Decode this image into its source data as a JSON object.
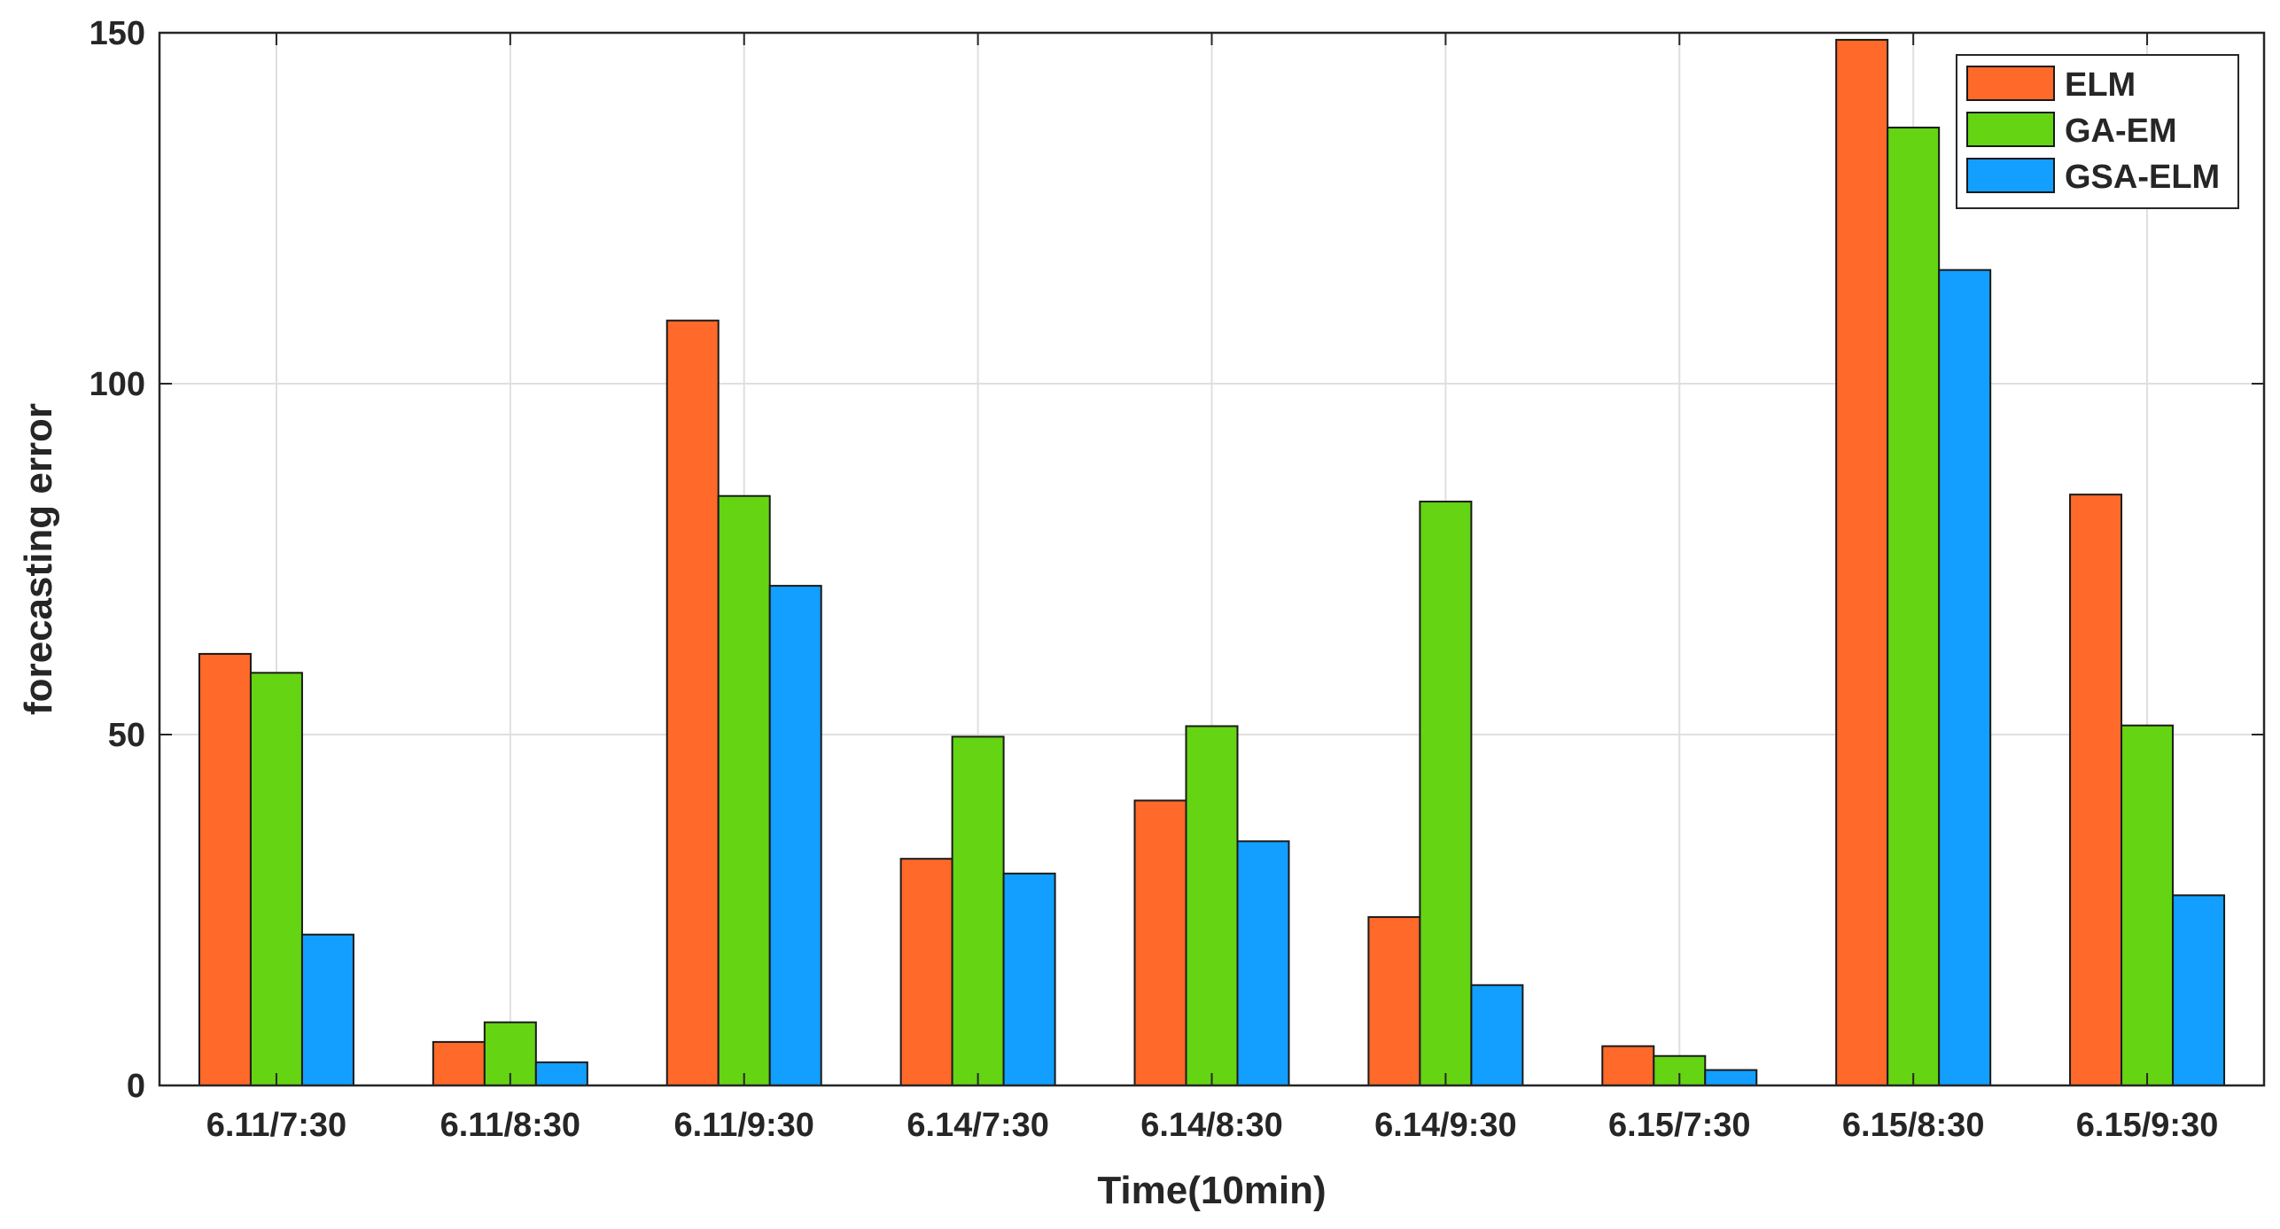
{
  "chart_data": {
    "type": "bar",
    "title": "",
    "xlabel": "Time(10min)",
    "ylabel": "forecasting error",
    "ylim": [
      0,
      150
    ],
    "yticks": [
      "0",
      "50",
      "100",
      "150"
    ],
    "categories": [
      "6.11/7:30",
      "6.11/8:30",
      "6.11/9:30",
      "6.14/7:30",
      "6.14/8:30",
      "6.14/9:30",
      "6.15/7:30",
      "6.15/8:30",
      "6.15/9:30"
    ],
    "series": [
      {
        "name": "ELM",
        "color": "#ff6929",
        "values": [
          61.5,
          6.2,
          109,
          32.3,
          40.6,
          24,
          5.6,
          149,
          84.2
        ]
      },
      {
        "name": "GA-EM",
        "color": "#64d413",
        "values": [
          58.8,
          9,
          84,
          49.7,
          51.2,
          83.2,
          4.2,
          136.5,
          51.3
        ]
      },
      {
        "name": "GSA-ELM",
        "color": "#129fff",
        "values": [
          21.5,
          3.3,
          71.2,
          30.2,
          34.8,
          14.3,
          2.2,
          116.2,
          27.1
        ]
      }
    ],
    "grid": true,
    "legend_position": "top-right"
  }
}
